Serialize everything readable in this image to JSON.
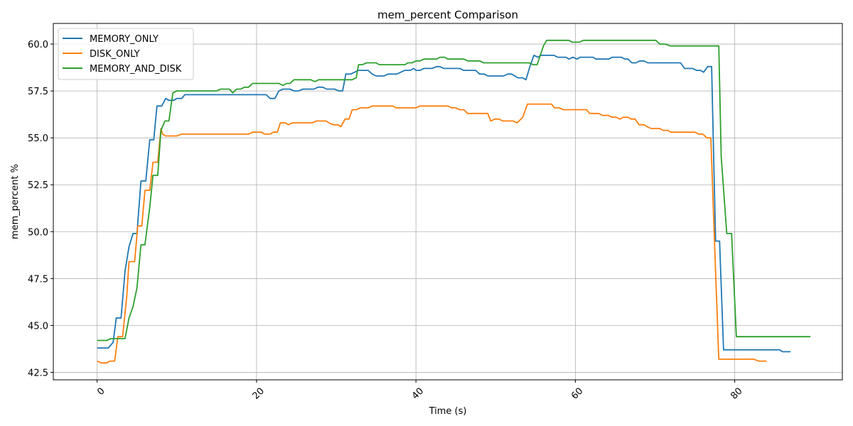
{
  "chart_data": {
    "type": "line",
    "title": "mem_percent Comparison",
    "xlabel": "Time (s)",
    "ylabel": "mem_percent %",
    "xlim": [
      -5.5,
      93.5
    ],
    "ylim": [
      42.1,
      61.1
    ],
    "xticks": [
      0,
      20,
      40,
      60,
      80
    ],
    "yticks": [
      42.5,
      45.0,
      47.5,
      50.0,
      52.5,
      55.0,
      57.5,
      60.0
    ],
    "xtick_labels": [
      "0",
      "20",
      "40",
      "60",
      "80"
    ],
    "ytick_labels": [
      "42.5",
      "45.0",
      "47.5",
      "50.0",
      "52.5",
      "55.0",
      "57.5",
      "60.0"
    ],
    "grid": true,
    "legend_position": "upper-left",
    "series": [
      {
        "name": "MEMORY_ONLY",
        "color": "#1f77b4",
        "points": [
          [
            0,
            43.8
          ],
          [
            1.4,
            43.8
          ],
          [
            2,
            44.1
          ],
          [
            2.4,
            45.4
          ],
          [
            3,
            45.4
          ],
          [
            3.5,
            47.9
          ],
          [
            4,
            49.2
          ],
          [
            4.5,
            49.9
          ],
          [
            5,
            49.9
          ],
          [
            5.5,
            52.7
          ],
          [
            6.1,
            52.7
          ],
          [
            6.6,
            54.9
          ],
          [
            7.1,
            54.9
          ],
          [
            7.5,
            56.7
          ],
          [
            8.1,
            56.7
          ],
          [
            8.6,
            57.1
          ],
          [
            9,
            57.0
          ],
          [
            9.6,
            57.0
          ],
          [
            10,
            57.1
          ],
          [
            10.6,
            57.1
          ],
          [
            11,
            57.3
          ],
          [
            15,
            57.3
          ],
          [
            20,
            57.3
          ],
          [
            21.2,
            57.3
          ],
          [
            21.7,
            57.1
          ],
          [
            22.3,
            57.1
          ],
          [
            22.8,
            57.5
          ],
          [
            23.3,
            57.6
          ],
          [
            24.2,
            57.6
          ],
          [
            24.7,
            57.5
          ],
          [
            25.3,
            57.5
          ],
          [
            25.8,
            57.6
          ],
          [
            27.2,
            57.6
          ],
          [
            27.7,
            57.7
          ],
          [
            28.3,
            57.7
          ],
          [
            28.8,
            57.6
          ],
          [
            29.8,
            57.6
          ],
          [
            30.3,
            57.5
          ],
          [
            30.8,
            57.5
          ],
          [
            31.2,
            58.4
          ],
          [
            31.8,
            58.4
          ],
          [
            32.3,
            58.5
          ],
          [
            32.8,
            58.6
          ],
          [
            34,
            58.6
          ],
          [
            34.5,
            58.4
          ],
          [
            35,
            58.3
          ],
          [
            36,
            58.3
          ],
          [
            36.5,
            58.4
          ],
          [
            37.6,
            58.4
          ],
          [
            38.1,
            58.5
          ],
          [
            38.6,
            58.6
          ],
          [
            39.3,
            58.6
          ],
          [
            39.7,
            58.7
          ],
          [
            40,
            58.6
          ],
          [
            40.5,
            58.6
          ],
          [
            41,
            58.7
          ],
          [
            42,
            58.7
          ],
          [
            42.6,
            58.8
          ],
          [
            43,
            58.8
          ],
          [
            43.5,
            58.7
          ],
          [
            45.5,
            58.7
          ],
          [
            46,
            58.6
          ],
          [
            47.5,
            58.6
          ],
          [
            48,
            58.4
          ],
          [
            48.6,
            58.4
          ],
          [
            49,
            58.3
          ],
          [
            51,
            58.3
          ],
          [
            51.5,
            58.4
          ],
          [
            52,
            58.4
          ],
          [
            52.8,
            58.2
          ],
          [
            53.4,
            58.2
          ],
          [
            53.8,
            58.1
          ],
          [
            54.3,
            58.8
          ],
          [
            54.8,
            59.4
          ],
          [
            55.3,
            59.3
          ],
          [
            55.7,
            59.4
          ],
          [
            57.3,
            59.4
          ],
          [
            57.8,
            59.3
          ],
          [
            58.8,
            59.3
          ],
          [
            59.2,
            59.2
          ],
          [
            59.7,
            59.3
          ],
          [
            60.2,
            59.2
          ],
          [
            60.6,
            59.3
          ],
          [
            62.2,
            59.3
          ],
          [
            62.6,
            59.2
          ],
          [
            64.2,
            59.2
          ],
          [
            64.6,
            59.3
          ],
          [
            65.8,
            59.3
          ],
          [
            66.2,
            59.2
          ],
          [
            66.6,
            59.2
          ],
          [
            67.1,
            59.0
          ],
          [
            67.6,
            59.0
          ],
          [
            68.1,
            59.1
          ],
          [
            68.6,
            59.1
          ],
          [
            69.1,
            59.0
          ],
          [
            73.2,
            59.0
          ],
          [
            73.7,
            58.7
          ],
          [
            74.7,
            58.7
          ],
          [
            75.2,
            58.6
          ],
          [
            75.7,
            58.6
          ],
          [
            76.1,
            58.5
          ],
          [
            76.6,
            58.8
          ],
          [
            77.1,
            58.8
          ],
          [
            77.6,
            49.5
          ],
          [
            78.1,
            49.5
          ],
          [
            78.6,
            43.7
          ],
          [
            80,
            43.7
          ],
          [
            85.6,
            43.7
          ],
          [
            86,
            43.6
          ],
          [
            87,
            43.6
          ]
        ]
      },
      {
        "name": "DISK_ONLY",
        "color": "#ff7f0e",
        "points": [
          [
            0,
            43.1
          ],
          [
            0.5,
            43.0
          ],
          [
            1.2,
            43.0
          ],
          [
            1.6,
            43.1
          ],
          [
            2.2,
            43.1
          ],
          [
            2.6,
            44.4
          ],
          [
            3.2,
            44.4
          ],
          [
            3.7,
            46.5
          ],
          [
            4,
            48.4
          ],
          [
            4.7,
            48.4
          ],
          [
            5.1,
            50.3
          ],
          [
            5.6,
            50.3
          ],
          [
            6,
            52.2
          ],
          [
            6.6,
            52.2
          ],
          [
            7,
            53.7
          ],
          [
            7.6,
            53.7
          ],
          [
            8,
            55.5
          ],
          [
            8.2,
            55.2
          ],
          [
            8.6,
            55.1
          ],
          [
            10,
            55.1
          ],
          [
            10.6,
            55.2
          ],
          [
            15,
            55.2
          ],
          [
            19,
            55.2
          ],
          [
            19.5,
            55.3
          ],
          [
            20.6,
            55.3
          ],
          [
            21,
            55.2
          ],
          [
            21.7,
            55.2
          ],
          [
            22.1,
            55.3
          ],
          [
            22.6,
            55.3
          ],
          [
            23,
            55.8
          ],
          [
            23.6,
            55.8
          ],
          [
            24,
            55.7
          ],
          [
            24.5,
            55.8
          ],
          [
            27,
            55.8
          ],
          [
            27.5,
            55.9
          ],
          [
            28.7,
            55.9
          ],
          [
            29.1,
            55.8
          ],
          [
            29.6,
            55.7
          ],
          [
            30.2,
            55.7
          ],
          [
            30.6,
            55.6
          ],
          [
            31.1,
            56.0
          ],
          [
            31.6,
            56.0
          ],
          [
            32,
            56.5
          ],
          [
            32.5,
            56.5
          ],
          [
            33,
            56.6
          ],
          [
            34,
            56.6
          ],
          [
            34.5,
            56.7
          ],
          [
            37.1,
            56.7
          ],
          [
            37.5,
            56.6
          ],
          [
            40,
            56.6
          ],
          [
            40.5,
            56.7
          ],
          [
            44,
            56.7
          ],
          [
            44.5,
            56.6
          ],
          [
            45,
            56.6
          ],
          [
            45.5,
            56.5
          ],
          [
            46,
            56.5
          ],
          [
            46.5,
            56.3
          ],
          [
            49,
            56.3
          ],
          [
            49.4,
            55.9
          ],
          [
            49.9,
            56.0
          ],
          [
            50.4,
            56.0
          ],
          [
            50.9,
            55.9
          ],
          [
            52.2,
            55.9
          ],
          [
            52.7,
            55.8
          ],
          [
            53.4,
            56.1
          ],
          [
            54,
            56.8
          ],
          [
            57,
            56.8
          ],
          [
            57.4,
            56.6
          ],
          [
            58,
            56.6
          ],
          [
            58.5,
            56.5
          ],
          [
            61.4,
            56.5
          ],
          [
            61.8,
            56.3
          ],
          [
            62.9,
            56.3
          ],
          [
            63.4,
            56.2
          ],
          [
            64.1,
            56.2
          ],
          [
            64.6,
            56.1
          ],
          [
            65.1,
            56.1
          ],
          [
            65.6,
            56.0
          ],
          [
            66,
            56.1
          ],
          [
            66.6,
            56.1
          ],
          [
            67,
            56.0
          ],
          [
            67.5,
            56.0
          ],
          [
            68,
            55.7
          ],
          [
            68.6,
            55.7
          ],
          [
            69,
            55.6
          ],
          [
            69.5,
            55.5
          ],
          [
            70.6,
            55.5
          ],
          [
            71,
            55.4
          ],
          [
            71.6,
            55.4
          ],
          [
            72,
            55.3
          ],
          [
            75,
            55.3
          ],
          [
            75.5,
            55.2
          ],
          [
            76,
            55.2
          ],
          [
            76.5,
            55.0
          ],
          [
            77,
            55.0
          ],
          [
            77.5,
            49.0
          ],
          [
            78,
            43.2
          ],
          [
            80,
            43.2
          ],
          [
            82.4,
            43.2
          ],
          [
            83,
            43.1
          ],
          [
            84,
            43.1
          ]
        ]
      },
      {
        "name": "MEMORY_AND_DISK",
        "color": "#2ca02c",
        "points": [
          [
            0,
            44.2
          ],
          [
            1.2,
            44.2
          ],
          [
            1.7,
            44.3
          ],
          [
            2.5,
            44.3
          ],
          [
            3,
            44.3
          ],
          [
            3.5,
            44.3
          ],
          [
            4,
            45.4
          ],
          [
            4.5,
            46.0
          ],
          [
            5,
            47.0
          ],
          [
            5.5,
            49.3
          ],
          [
            6,
            49.3
          ],
          [
            6.6,
            51.3
          ],
          [
            7,
            53.0
          ],
          [
            7.6,
            53.0
          ],
          [
            8,
            55.4
          ],
          [
            8.5,
            55.9
          ],
          [
            9,
            55.9
          ],
          [
            9.5,
            57.4
          ],
          [
            10,
            57.5
          ],
          [
            15,
            57.5
          ],
          [
            15.5,
            57.6
          ],
          [
            16.6,
            57.6
          ],
          [
            17,
            57.4
          ],
          [
            17.5,
            57.6
          ],
          [
            18,
            57.6
          ],
          [
            18.5,
            57.7
          ],
          [
            19,
            57.7
          ],
          [
            19.5,
            57.9
          ],
          [
            22.8,
            57.9
          ],
          [
            23.3,
            57.8
          ],
          [
            23.8,
            57.9
          ],
          [
            24.2,
            57.9
          ],
          [
            24.7,
            58.1
          ],
          [
            26.8,
            58.1
          ],
          [
            27.3,
            58.0
          ],
          [
            27.8,
            58.1
          ],
          [
            29,
            58.1
          ],
          [
            32,
            58.1
          ],
          [
            32.5,
            58.2
          ],
          [
            32.8,
            58.9
          ],
          [
            33.3,
            58.9
          ],
          [
            33.8,
            59.0
          ],
          [
            35,
            59.0
          ],
          [
            35.4,
            58.9
          ],
          [
            38.6,
            58.9
          ],
          [
            39,
            59.0
          ],
          [
            39.5,
            59.0
          ],
          [
            40,
            59.1
          ],
          [
            40.5,
            59.1
          ],
          [
            41,
            59.2
          ],
          [
            42.6,
            59.2
          ],
          [
            43,
            59.3
          ],
          [
            43.6,
            59.3
          ],
          [
            44,
            59.2
          ],
          [
            46,
            59.2
          ],
          [
            46.5,
            59.1
          ],
          [
            48,
            59.1
          ],
          [
            48.5,
            59.0
          ],
          [
            52,
            59.0
          ],
          [
            54.2,
            59.0
          ],
          [
            54.7,
            58.9
          ],
          [
            55.2,
            58.9
          ],
          [
            56,
            59.9
          ],
          [
            56.4,
            60.2
          ],
          [
            58,
            60.2
          ],
          [
            59.2,
            60.2
          ],
          [
            59.6,
            60.1
          ],
          [
            60.5,
            60.1
          ],
          [
            61,
            60.2
          ],
          [
            62.2,
            60.2
          ],
          [
            70.1,
            60.2
          ],
          [
            70.6,
            60.0
          ],
          [
            71.3,
            60.0
          ],
          [
            71.9,
            59.9
          ],
          [
            75,
            59.9
          ],
          [
            76,
            59.9
          ],
          [
            78,
            59.9
          ],
          [
            78.3,
            54.0
          ],
          [
            79,
            49.9
          ],
          [
            79.6,
            49.9
          ],
          [
            80.2,
            44.4
          ],
          [
            85,
            44.4
          ],
          [
            89.5,
            44.4
          ]
        ]
      }
    ]
  }
}
